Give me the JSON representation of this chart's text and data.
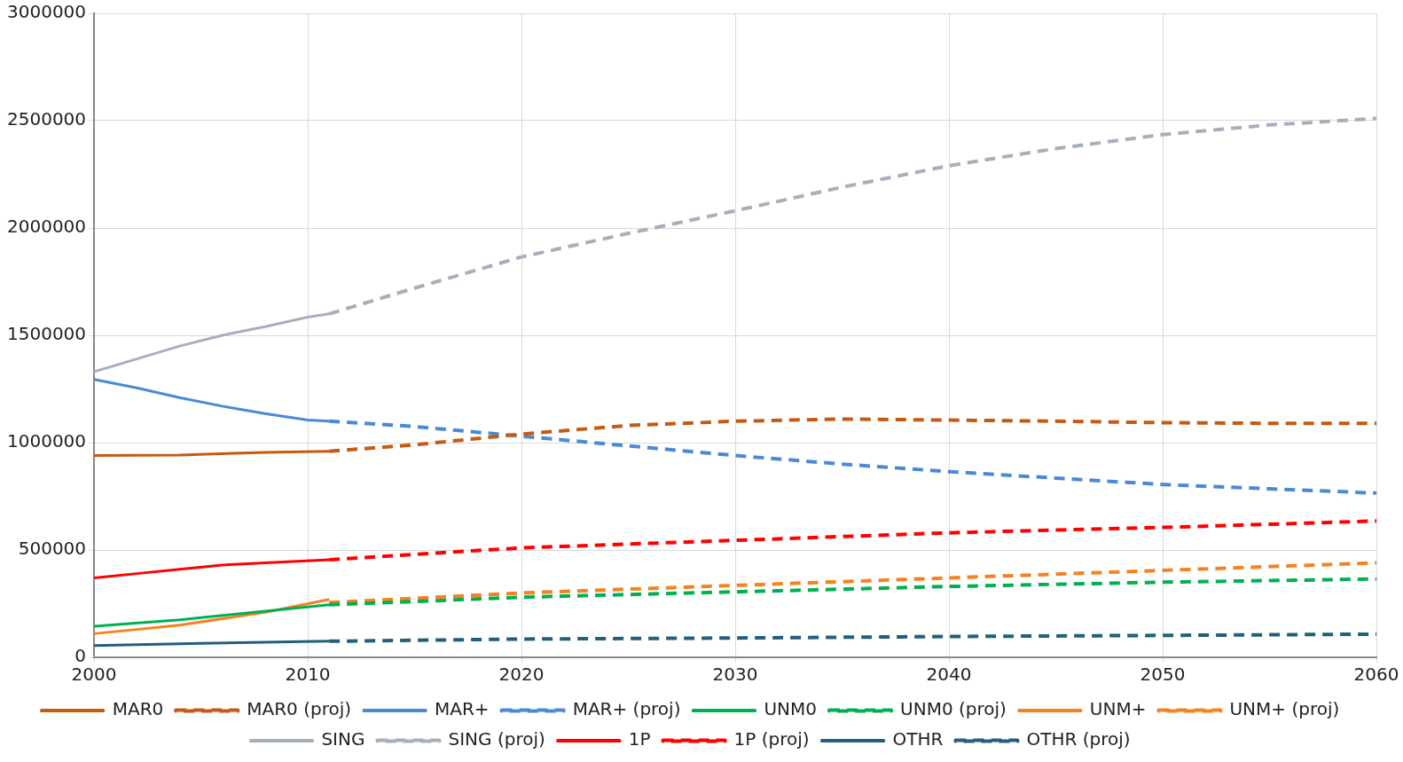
{
  "chart_data": {
    "type": "line",
    "xlim": [
      2000,
      2060
    ],
    "xticks": [
      2000,
      2010,
      2020,
      2030,
      2040,
      2050,
      2060
    ],
    "ylim": [
      0,
      3000000
    ],
    "yticks": [
      0,
      500000,
      1000000,
      1500000,
      2000000,
      2500000,
      3000000
    ],
    "grid": true,
    "legend": "bottom",
    "marker": "none",
    "series": [
      {
        "name": "MAR0",
        "color": "#c55a11",
        "line_style": "solid",
        "x": [
          2000,
          2004,
          2008,
          2011
        ],
        "values": [
          940000,
          942000,
          955000,
          960000
        ]
      },
      {
        "name": "MAR0 (proj)",
        "color": "#c55a11",
        "line_style": "dashed",
        "x": [
          2011,
          2015,
          2020,
          2025,
          2030,
          2035,
          2040,
          2045,
          2050,
          2055,
          2060
        ],
        "values": [
          960000,
          990000,
          1040000,
          1080000,
          1100000,
          1110000,
          1105000,
          1100000,
          1093000,
          1090000,
          1090000
        ]
      },
      {
        "name": "MAR+",
        "color": "#4a8ad4",
        "line_style": "solid",
        "x": [
          2000,
          2002,
          2004,
          2006,
          2008,
          2010,
          2011
        ],
        "values": [
          1295000,
          1255000,
          1210000,
          1170000,
          1135000,
          1105000,
          1100000
        ]
      },
      {
        "name": "MAR+ (proj)",
        "color": "#4a8ad4",
        "line_style": "dashed",
        "x": [
          2011,
          2015,
          2020,
          2025,
          2030,
          2035,
          2040,
          2045,
          2050,
          2055,
          2060
        ],
        "values": [
          1100000,
          1075000,
          1030000,
          985000,
          940000,
          900000,
          865000,
          835000,
          805000,
          785000,
          765000
        ]
      },
      {
        "name": "UNM0",
        "color": "#00b050",
        "line_style": "solid",
        "x": [
          2000,
          2004,
          2008,
          2011
        ],
        "values": [
          145000,
          175000,
          215000,
          245000
        ]
      },
      {
        "name": "UNM0 (proj)",
        "color": "#00b050",
        "line_style": "dashed",
        "x": [
          2011,
          2015,
          2020,
          2030,
          2040,
          2050,
          2060
        ],
        "values": [
          245000,
          260000,
          280000,
          305000,
          330000,
          350000,
          365000
        ]
      },
      {
        "name": "UNM+",
        "color": "#f58220",
        "line_style": "solid",
        "x": [
          2000,
          2004,
          2008,
          2011
        ],
        "values": [
          110000,
          150000,
          210000,
          270000
        ]
      },
      {
        "name": "UNM+ (proj)",
        "color": "#f58220",
        "line_style": "dashed",
        "x": [
          2011,
          2015,
          2020,
          2030,
          2040,
          2050,
          2060
        ],
        "values": [
          255000,
          275000,
          300000,
          335000,
          370000,
          405000,
          440000
        ]
      },
      {
        "name": "SING",
        "color": "#a6b0bd",
        "line_style": "solid",
        "x": [
          2000,
          2002,
          2004,
          2006,
          2008,
          2010,
          2011
        ],
        "values": [
          1330000,
          1390000,
          1450000,
          1500000,
          1540000,
          1585000,
          1600000
        ]
      },
      {
        "name": "SING (proj)",
        "color": "#a6b0bd",
        "line_style": "dashed",
        "x": [
          2011,
          2015,
          2020,
          2025,
          2030,
          2035,
          2040,
          2045,
          2050,
          2055,
          2060
        ],
        "values": [
          1600000,
          1720000,
          1865000,
          1975000,
          2080000,
          2190000,
          2290000,
          2370000,
          2435000,
          2480000,
          2510000
        ]
      },
      {
        "name": "1P",
        "color": "#ff0000",
        "line_style": "solid",
        "x": [
          2000,
          2002,
          2004,
          2006,
          2008,
          2011
        ],
        "values": [
          370000,
          390000,
          410000,
          430000,
          440000,
          455000
        ]
      },
      {
        "name": "1P (proj)",
        "color": "#ff0000",
        "line_style": "dashed",
        "x": [
          2011,
          2020,
          2030,
          2040,
          2050,
          2060
        ],
        "values": [
          455000,
          510000,
          545000,
          580000,
          605000,
          635000
        ]
      },
      {
        "name": "OTHR",
        "color": "#215f7a",
        "line_style": "solid",
        "x": [
          2000,
          2005,
          2011
        ],
        "values": [
          55000,
          65000,
          75000
        ]
      },
      {
        "name": "OTHR (proj)",
        "color": "#215f7a",
        "line_style": "dashed",
        "x": [
          2011,
          2020,
          2030,
          2040,
          2050,
          2060
        ],
        "values": [
          75000,
          85000,
          90000,
          97000,
          102000,
          108000
        ]
      }
    ]
  }
}
